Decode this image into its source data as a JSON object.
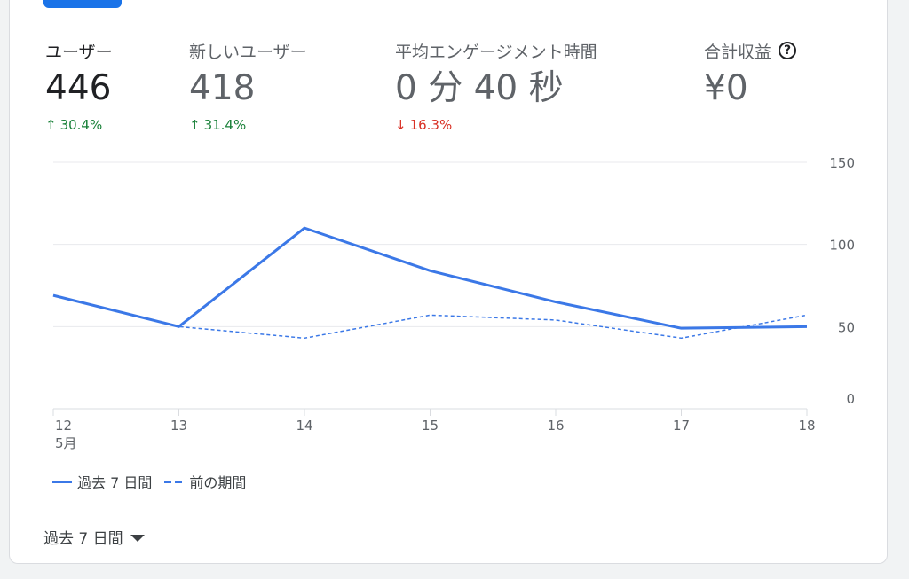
{
  "metrics": [
    {
      "label": "ユーザー",
      "value": "446",
      "change": "30.4%",
      "direction": "up",
      "arrow": "↑"
    },
    {
      "label": "新しいユーザー",
      "value": "418",
      "change": "31.4%",
      "direction": "up",
      "arrow": "↑"
    },
    {
      "label": "平均エンゲージメント時間",
      "value": "0 分 40 秒",
      "change": "16.3%",
      "direction": "down",
      "arrow": "↓"
    },
    {
      "label": "合計収益",
      "value": "¥0",
      "help_icon": "?"
    }
  ],
  "chart_data": {
    "type": "line",
    "categories": [
      "12",
      "13",
      "14",
      "15",
      "16",
      "17",
      "18"
    ],
    "x_sublabel": "5月",
    "y_ticks": [
      0,
      50,
      100,
      150
    ],
    "ylim": [
      0,
      150
    ],
    "grid": true,
    "series": [
      {
        "name": "過去 7 日間",
        "style": "solid",
        "color": "#3b78e7",
        "values": [
          69,
          50,
          110,
          84,
          65,
          49,
          50
        ]
      },
      {
        "name": "前の期間",
        "style": "dashed",
        "color": "#3b78e7",
        "values": [
          69,
          50,
          43,
          57,
          54,
          43,
          57
        ]
      }
    ]
  },
  "legend": {
    "current": "過去 7 日間",
    "previous": "前の期間"
  },
  "range_selector": {
    "label": "過去 7 日間",
    "icon": "caret-down-icon"
  },
  "colors": {
    "accent": "#1a73e8",
    "up": "#188038",
    "down": "#d93025"
  }
}
